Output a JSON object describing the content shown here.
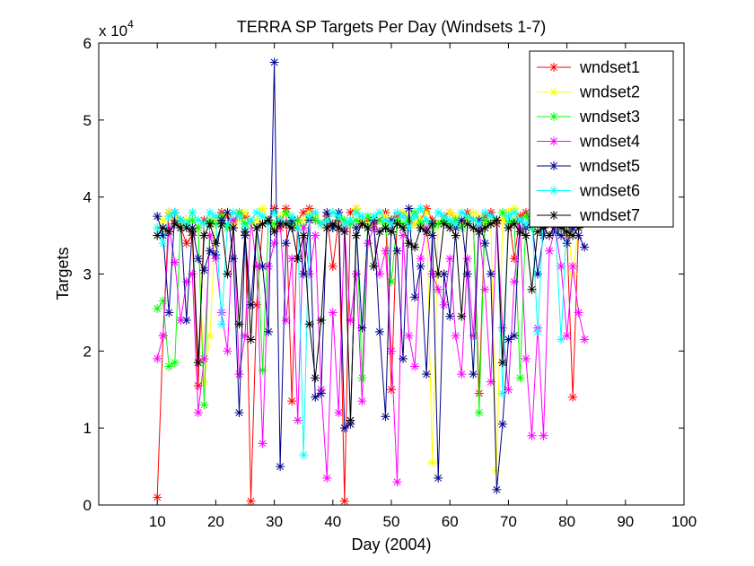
{
  "chart_data": {
    "type": "line",
    "title": "TERRA SP Targets Per Day (Windsets 1-7)",
    "xlabel": "Day (2004)",
    "ylabel": "Targets",
    "exponent_label": "x 10",
    "exponent_power": "4",
    "xlim": [
      0,
      100
    ],
    "ylim": [
      0,
      60000
    ],
    "xticks": [
      10,
      20,
      30,
      40,
      50,
      60,
      70,
      80,
      90,
      100
    ],
    "yticks": [
      0,
      10000,
      20000,
      30000,
      40000,
      50000,
      60000
    ],
    "ytick_labels": [
      "0",
      "1",
      "2",
      "3",
      "4",
      "5",
      "6"
    ],
    "grid": false,
    "legend_position": "top-right",
    "marker": "asterisk",
    "series": [
      {
        "name": "wndset1",
        "color": "#ff0000",
        "x": [
          10,
          11,
          12,
          13,
          14,
          15,
          16,
          17,
          18,
          19,
          20,
          21,
          22,
          23,
          24,
          25,
          26,
          27,
          28,
          29,
          30,
          31,
          32,
          33,
          34,
          35,
          36,
          37,
          38,
          39,
          40,
          41,
          42,
          43,
          44,
          45,
          46,
          47,
          48,
          49,
          50,
          51,
          52,
          53,
          54,
          55,
          56,
          57,
          58,
          59,
          60,
          61,
          62,
          63,
          64,
          65,
          66,
          67,
          68,
          69,
          70,
          71,
          72,
          73,
          74,
          75,
          76,
          77,
          78,
          79,
          80,
          81,
          82
        ],
        "y": [
          1000,
          22000,
          38000,
          37000,
          36000,
          34000,
          35000,
          15500,
          37000,
          36500,
          37000,
          38000,
          37500,
          36500,
          38000,
          37500,
          500,
          26000,
          36500,
          37000,
          38500,
          36000,
          38500,
          13500,
          37000,
          38000,
          38500,
          37000,
          36500,
          37500,
          31000,
          37000,
          500,
          38000,
          38500,
          36500,
          37000,
          36500,
          37000,
          38000,
          15000,
          37500,
          38000,
          37000,
          36500,
          37000,
          38500,
          37000,
          36500,
          37500,
          38000,
          37000,
          36500,
          38000,
          37000,
          14500,
          37500,
          38000,
          36500,
          37000,
          38000,
          32000,
          37500,
          38000,
          36500,
          37000,
          37500,
          38000,
          36500,
          37000,
          35000,
          14000,
          36000
        ]
      },
      {
        "name": "wndset2",
        "color": "#ffff00",
        "x": [
          10,
          11,
          12,
          13,
          14,
          15,
          16,
          17,
          18,
          19,
          20,
          21,
          22,
          23,
          24,
          25,
          26,
          27,
          28,
          29,
          30,
          31,
          32,
          33,
          34,
          35,
          36,
          37,
          38,
          39,
          40,
          41,
          42,
          43,
          44,
          45,
          46,
          47,
          48,
          49,
          50,
          51,
          52,
          53,
          54,
          55,
          56,
          57,
          58,
          59,
          60,
          61,
          62,
          63,
          64,
          65,
          66,
          67,
          68,
          69,
          70,
          71,
          72,
          73,
          74,
          75,
          76,
          77,
          78,
          79,
          80,
          81,
          82
        ],
        "y": [
          36000,
          37000,
          38000,
          37500,
          36500,
          37000,
          38000,
          36000,
          16000,
          22000,
          37000,
          37500,
          38000,
          36500,
          37000,
          38000,
          36500,
          37000,
          38500,
          37000,
          36000,
          37500,
          38000,
          37000,
          36500,
          37000,
          38000,
          37500,
          36500,
          37000,
          38000,
          37500,
          36000,
          37000,
          38500,
          37000,
          36500,
          37000,
          38000,
          37500,
          36500,
          37000,
          38000,
          37500,
          36500,
          37000,
          38000,
          5500,
          36500,
          37000,
          38000,
          37500,
          36500,
          37000,
          38000,
          37500,
          36500,
          37000,
          4500,
          37000,
          38000,
          38500,
          37000,
          36500,
          37000,
          38000,
          37500,
          36500,
          37000,
          38000,
          37500,
          30000,
          36000
        ]
      },
      {
        "name": "wndset3",
        "color": "#00ff00",
        "x": [
          10,
          11,
          12,
          13,
          14,
          15,
          16,
          17,
          18,
          19,
          20,
          21,
          22,
          23,
          24,
          25,
          26,
          27,
          28,
          29,
          30,
          31,
          32,
          33,
          34,
          35,
          36,
          37,
          38,
          39,
          40,
          41,
          42,
          43,
          44,
          45,
          46,
          47,
          48,
          49,
          50,
          51,
          52,
          53,
          54,
          55,
          56,
          57,
          58,
          59,
          60,
          61,
          62,
          63,
          64,
          65,
          66,
          67,
          68,
          69,
          70,
          71,
          72,
          73,
          74,
          75,
          76,
          77,
          78,
          79,
          80,
          81,
          82
        ],
        "y": [
          25500,
          26500,
          18000,
          18500,
          37000,
          36500,
          37000,
          36000,
          13000,
          37000,
          36500,
          37500,
          36000,
          37000,
          38000,
          36500,
          37000,
          36000,
          17500,
          37000,
          36500,
          37000,
          38000,
          36500,
          37000,
          36000,
          37500,
          37000,
          36500,
          37000,
          36000,
          37500,
          37000,
          36500,
          37000,
          16500,
          37500,
          36000,
          37000,
          36500,
          29000,
          37000,
          36500,
          37000,
          38000,
          36500,
          37000,
          36000,
          36500,
          37000,
          36500,
          37000,
          36000,
          37500,
          37000,
          12000,
          37000,
          36500,
          37000,
          38000,
          36500,
          37000,
          16500,
          37500,
          36000,
          37000,
          36500,
          37000,
          38000,
          36500,
          37000,
          36000,
          37000
        ]
      },
      {
        "name": "wndset4",
        "color": "#ff00ff",
        "x": [
          10,
          11,
          12,
          13,
          14,
          15,
          16,
          17,
          18,
          19,
          20,
          21,
          22,
          23,
          24,
          25,
          26,
          27,
          28,
          29,
          30,
          31,
          32,
          33,
          34,
          35,
          36,
          37,
          38,
          39,
          40,
          41,
          42,
          43,
          44,
          45,
          46,
          47,
          48,
          49,
          50,
          51,
          52,
          53,
          54,
          55,
          56,
          57,
          58,
          59,
          60,
          61,
          62,
          63,
          64,
          65,
          66,
          67,
          68,
          69,
          70,
          71,
          72,
          73,
          74,
          75,
          76,
          77,
          78,
          79,
          80,
          81,
          82,
          83
        ],
        "y": [
          19000,
          22000,
          36000,
          31500,
          24000,
          29000,
          30000,
          12000,
          19000,
          35000,
          32000,
          25000,
          20000,
          37000,
          17000,
          22000,
          37000,
          31000,
          8000,
          31000,
          34000,
          37000,
          24000,
          32000,
          11000,
          36000,
          30000,
          35000,
          15000,
          3500,
          25000,
          12000,
          36000,
          24000,
          30000,
          13500,
          34000,
          36000,
          30000,
          33000,
          20000,
          3000,
          35000,
          22000,
          18000,
          32000,
          36000,
          30000,
          28000,
          26000,
          32000,
          22000,
          17000,
          32000,
          22000,
          36000,
          28000,
          16000,
          37000,
          23000,
          15000,
          29000,
          36000,
          19000,
          9000,
          23000,
          9000,
          33000,
          36000,
          31000,
          22000,
          31000,
          25000,
          21500
        ]
      },
      {
        "name": "wndset5",
        "color": "#00008b",
        "x": [
          10,
          11,
          12,
          13,
          14,
          15,
          16,
          17,
          18,
          19,
          20,
          21,
          22,
          23,
          24,
          25,
          26,
          27,
          28,
          29,
          30,
          31,
          32,
          33,
          34,
          35,
          36,
          37,
          38,
          39,
          40,
          41,
          42,
          43,
          44,
          45,
          46,
          47,
          48,
          49,
          50,
          51,
          52,
          53,
          54,
          55,
          56,
          57,
          58,
          59,
          60,
          61,
          62,
          63,
          64,
          65,
          66,
          67,
          68,
          69,
          70,
          71,
          72,
          73,
          74,
          75,
          76,
          77,
          78,
          79,
          80,
          81,
          82,
          83
        ],
        "y": [
          37500,
          35000,
          25000,
          38000,
          37000,
          24000,
          36000,
          32000,
          30500,
          33000,
          32500,
          37000,
          38000,
          32000,
          12000,
          35000,
          26000,
          36000,
          31000,
          22500,
          57500,
          5000,
          34000,
          37000,
          36000,
          30000,
          37000,
          14000,
          14500,
          38000,
          36000,
          38000,
          10000,
          10500,
          36000,
          23000,
          36000,
          37000,
          22500,
          11500,
          37000,
          33000,
          19000,
          38500,
          27000,
          31000,
          17000,
          35000,
          3500,
          30000,
          24500,
          36000,
          37000,
          30000,
          17000,
          37000,
          34000,
          30000,
          2000,
          10500,
          21500,
          22000,
          37000,
          36000,
          37000,
          30000,
          35000,
          37500,
          35500,
          35000,
          34000,
          36000,
          35000,
          33500
        ]
      },
      {
        "name": "wndset6",
        "color": "#00ffff",
        "x": [
          10,
          11,
          12,
          13,
          14,
          15,
          16,
          17,
          18,
          19,
          20,
          21,
          22,
          23,
          24,
          25,
          26,
          27,
          28,
          29,
          30,
          31,
          32,
          33,
          34,
          35,
          36,
          37,
          38,
          39,
          40,
          41,
          42,
          43,
          44,
          45,
          46,
          47,
          48,
          49,
          50,
          51,
          52,
          53,
          54,
          55,
          56,
          57,
          58,
          59,
          60,
          61,
          62,
          63,
          64,
          65,
          66,
          67,
          68,
          69,
          70,
          71,
          72,
          73,
          74,
          75,
          76,
          77,
          78,
          79,
          80,
          81,
          82
        ],
        "y": [
          36000,
          34000,
          37500,
          38000,
          37000,
          36500,
          38000,
          37000,
          36500,
          38000,
          37500,
          23500,
          36500,
          38000,
          37500,
          36000,
          37000,
          38000,
          37500,
          36500,
          38000,
          37000,
          36500,
          37500,
          36000,
          6500,
          37500,
          38000,
          36500,
          37000,
          38000,
          37500,
          36500,
          37000,
          38000,
          37500,
          36000,
          37500,
          38000,
          37000,
          36500,
          38000,
          37500,
          36000,
          37500,
          38500,
          37000,
          36500,
          38000,
          37500,
          37000,
          36500,
          38000,
          37500,
          37000,
          36500,
          38000,
          37500,
          37000,
          14500,
          37500,
          38000,
          37000,
          36500,
          38000,
          22500,
          37500,
          37000,
          36500,
          21500,
          37500,
          38000,
          37000
        ]
      },
      {
        "name": "wndset7",
        "color": "#000000",
        "x": [
          10,
          11,
          12,
          13,
          14,
          15,
          16,
          17,
          18,
          19,
          20,
          21,
          22,
          23,
          24,
          25,
          26,
          27,
          28,
          29,
          30,
          31,
          32,
          33,
          34,
          35,
          36,
          37,
          38,
          39,
          40,
          41,
          42,
          43,
          44,
          45,
          46,
          47,
          48,
          49,
          50,
          51,
          52,
          53,
          54,
          55,
          56,
          57,
          58,
          59,
          60,
          61,
          62,
          63,
          64,
          65,
          66,
          67,
          68,
          69,
          70,
          71,
          72,
          73,
          74,
          75,
          76,
          77,
          78,
          79,
          80,
          81,
          82
        ],
        "y": [
          35000,
          36000,
          35500,
          36500,
          36000,
          36000,
          35500,
          18500,
          35000,
          36500,
          34000,
          36500,
          30000,
          36000,
          23500,
          35500,
          21500,
          36000,
          36500,
          37000,
          35500,
          36500,
          36500,
          36000,
          32000,
          35000,
          23500,
          16500,
          24000,
          36000,
          36500,
          36000,
          35500,
          11000,
          35000,
          36500,
          36000,
          31000,
          35500,
          36000,
          35500,
          36500,
          36000,
          34000,
          33500,
          36000,
          35500,
          36500,
          30000,
          36500,
          36000,
          35000,
          24500,
          36500,
          36000,
          35500,
          36000,
          36500,
          37000,
          18500,
          36000,
          36500,
          35500,
          35000,
          28000,
          35500,
          36000,
          35000,
          36500,
          36000,
          35500,
          35000,
          36000
        ]
      }
    ]
  }
}
